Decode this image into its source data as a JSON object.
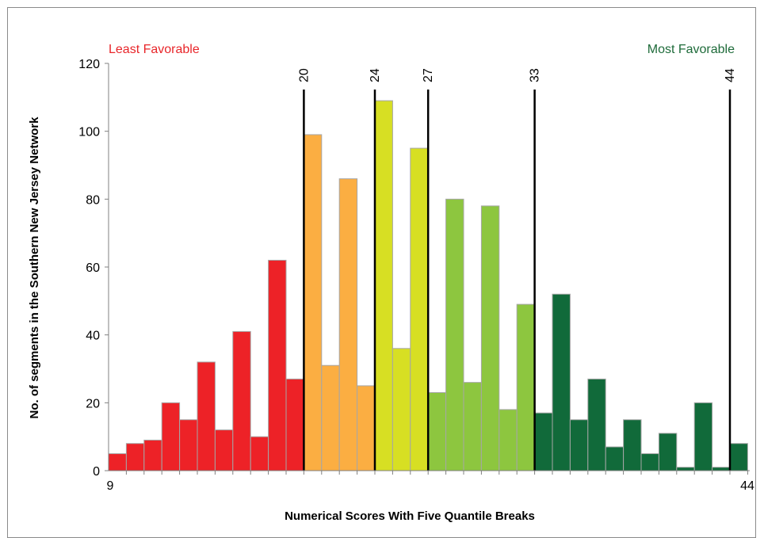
{
  "chart_data": {
    "type": "bar",
    "xlabel": "Numerical Scores With Five Quantile Breaks",
    "ylabel": "No. of segments in the Southern New Jersey Network",
    "ylim": [
      0,
      120
    ],
    "y_ticks": [
      "0",
      "20",
      "40",
      "60",
      "80",
      "100",
      "120"
    ],
    "x_tick_labels": {
      "start": "9",
      "end": "44"
    },
    "x_range": [
      9,
      44
    ],
    "grid": false,
    "corner_labels": {
      "left": {
        "text": "Least Favorable",
        "color": "#e8262a"
      },
      "right": {
        "text": "Most Favorable",
        "color": "#1e6b3a"
      }
    },
    "quantile_breaks": [
      {
        "label": "20",
        "score": 20
      },
      {
        "label": "24",
        "score": 24
      },
      {
        "label": "27",
        "score": 27
      },
      {
        "label": "33",
        "score": 33
      },
      {
        "label": "44",
        "score": 44
      }
    ],
    "colors": [
      "#ed2227",
      "#fbae42",
      "#d7df23",
      "#8dc63f",
      "#116a3a"
    ],
    "series": [
      {
        "values": [
          5,
          8,
          9,
          20,
          15,
          32,
          12,
          41,
          10,
          62,
          27
        ],
        "color_index": 0
      },
      {
        "values": [
          99,
          31,
          86,
          25
        ],
        "color_index": 1
      },
      {
        "values": [
          109,
          36,
          95
        ],
        "color_index": 2
      },
      {
        "values": [
          23,
          80,
          26,
          78,
          18,
          49
        ],
        "color_index": 3
      },
      {
        "values": [
          17,
          52,
          15,
          27,
          7,
          15,
          5,
          11,
          1,
          20,
          1,
          8
        ],
        "color_index": 4
      }
    ]
  }
}
